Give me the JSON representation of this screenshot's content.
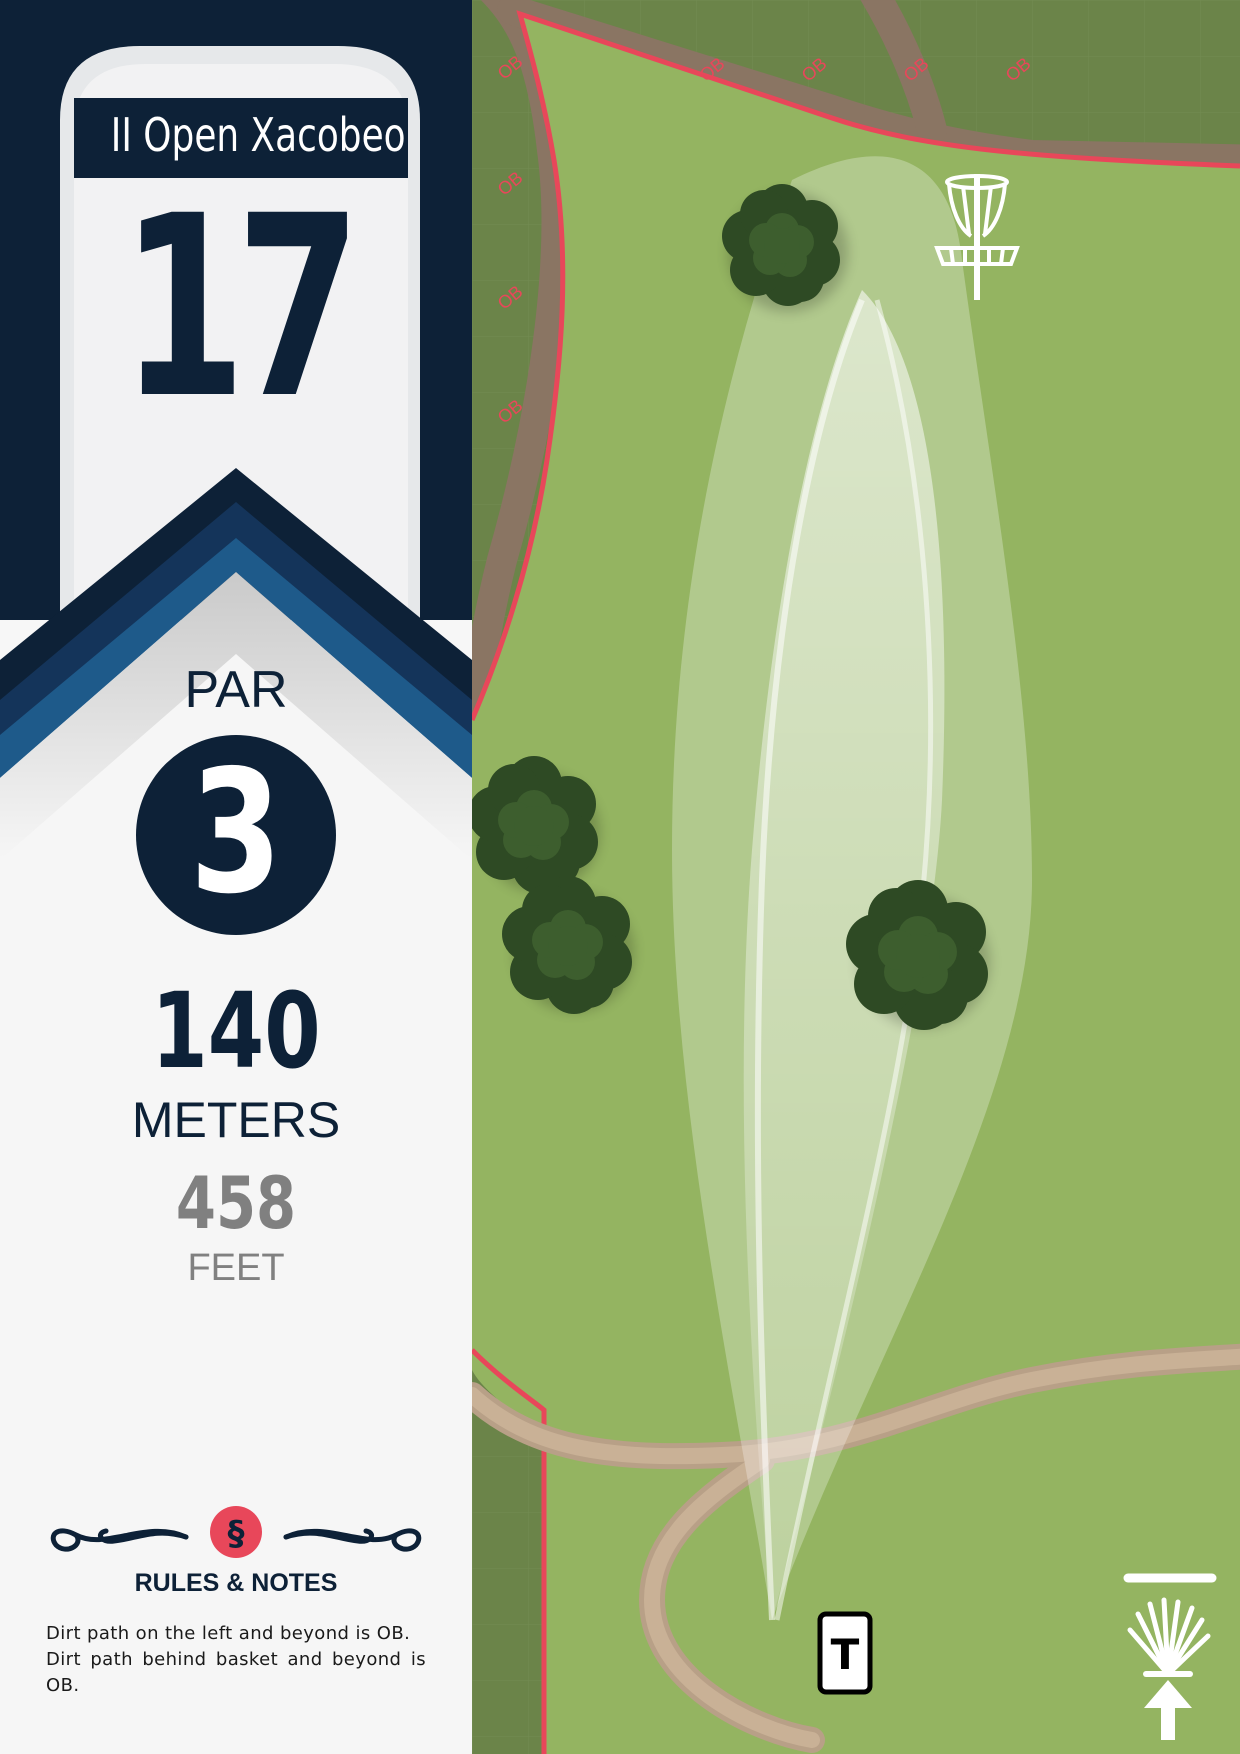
{
  "hole": {
    "tournament": "II Open Xacobeo",
    "number": "17",
    "par_label": "PAR",
    "par": "3",
    "distance_meters": "140",
    "meters_unit": "METERS",
    "distance_feet": "458",
    "feet_unit": "FEET"
  },
  "rules": {
    "title": "RULES & NOTES",
    "section_symbol": "§",
    "notes": [
      "Dirt path on the left and beyond is OB.",
      "Dirt path behind basket and beyond is OB."
    ]
  },
  "map": {
    "ob_label": "OB",
    "tee_label": "T",
    "icons": [
      "disc-golf-basket-icon",
      "tree-icon",
      "scallop-shell-icon",
      "north-arrow-icon",
      "tee-pad-icon"
    ]
  },
  "colors": {
    "navy": "#0d2137",
    "blue": "#1e5a8a",
    "ob_line": "#e8475a",
    "grass": "#94b461",
    "grass_dark": "#6b8449",
    "path": "#c2a88a",
    "tree": "#2e4a24"
  }
}
